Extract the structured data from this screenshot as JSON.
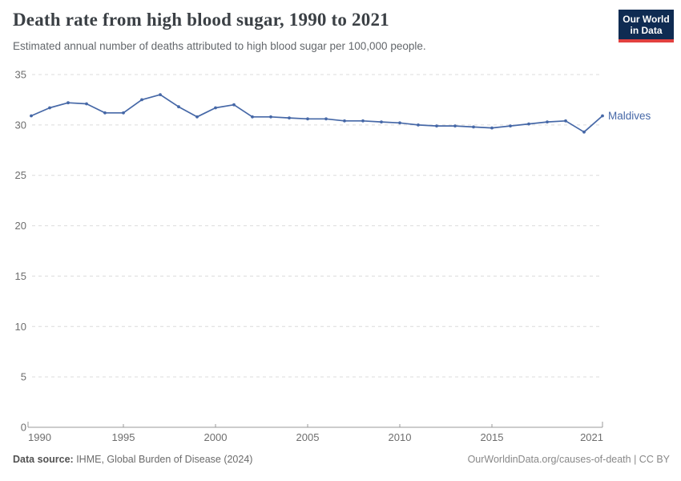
{
  "header": {
    "title": "Death rate from high blood sugar, 1990 to 2021",
    "subtitle": "Estimated annual number of deaths attributed to high blood sugar per 100,000 people.",
    "logo": {
      "line1": "Our World",
      "line2": "in Data"
    }
  },
  "footer": {
    "source_label": "Data source:",
    "source_text": " IHME, Global Burden of Disease (2024)",
    "credit": "OurWorldinData.org/causes-of-death | CC BY"
  },
  "colors": {
    "line": "#4668a7",
    "gridline": "#dcdcdc",
    "axis": "#999999",
    "tick_label": "#6e6e6e",
    "logo_navy": "#0f2b52",
    "logo_red": "#e2403f",
    "title_text": "#3b4045"
  },
  "chart_data": {
    "type": "line",
    "title": "Death rate from high blood sugar, 1990 to 2021",
    "subtitle": "Estimated annual number of deaths attributed to high blood sugar per 100,000 people.",
    "xlabel": "",
    "ylabel": "",
    "xlim": [
      1990,
      2021
    ],
    "ylim": [
      0,
      35
    ],
    "grid": "horizontal-dashed",
    "legend_position": "end-of-line-label",
    "xticks": [
      1990,
      1995,
      2000,
      2005,
      2010,
      2015,
      2021
    ],
    "yticks": [
      0,
      5,
      10,
      15,
      20,
      25,
      30,
      35
    ],
    "series": [
      {
        "name": "Maldives",
        "x": [
          1990,
          1991,
          1992,
          1993,
          1994,
          1995,
          1996,
          1997,
          1998,
          1999,
          2000,
          2001,
          2002,
          2003,
          2004,
          2005,
          2006,
          2007,
          2008,
          2009,
          2010,
          2011,
          2012,
          2013,
          2014,
          2015,
          2016,
          2017,
          2018,
          2019,
          2020,
          2021
        ],
        "values": [
          30.9,
          31.7,
          32.2,
          32.1,
          31.2,
          31.2,
          32.5,
          33.0,
          31.8,
          30.8,
          31.7,
          32.0,
          30.8,
          30.8,
          30.7,
          30.6,
          30.6,
          30.4,
          30.4,
          30.3,
          30.2,
          30.0,
          29.9,
          29.9,
          29.8,
          29.7,
          29.9,
          30.1,
          30.3,
          30.4,
          29.3,
          30.9
        ]
      }
    ]
  }
}
